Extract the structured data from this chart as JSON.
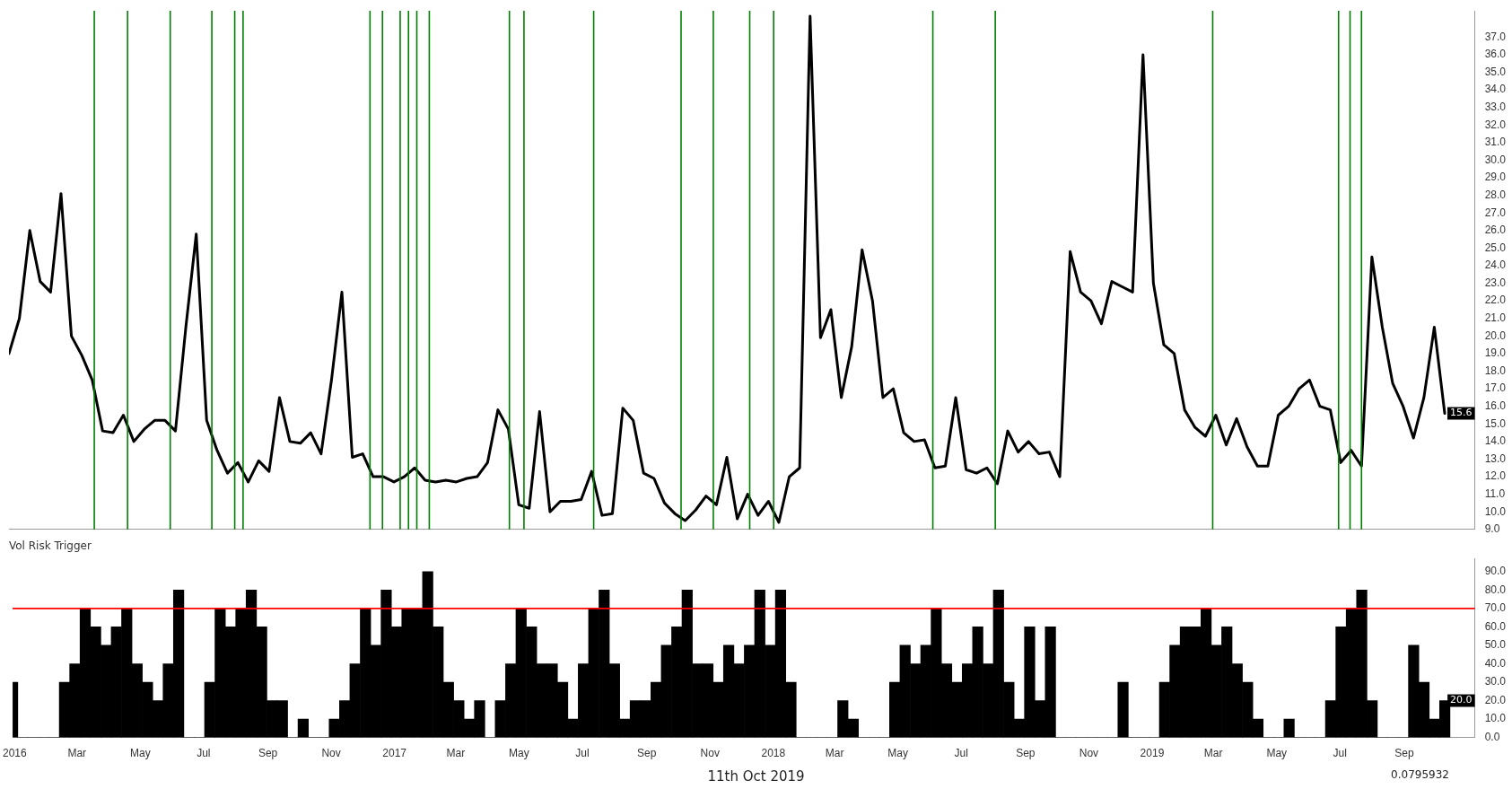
{
  "chart_data": [
    {
      "type": "line",
      "tick_labels": "y",
      "marker": "none",
      "line_style": "solid",
      "xlim": [
        "2015-12-30",
        "2019-11-08"
      ],
      "ylim": [
        9,
        38.5
      ],
      "yticks": [
        {
          "value": 9,
          "label": "9.0"
        },
        {
          "value": 10,
          "label": "10.0"
        },
        {
          "value": 11,
          "label": "11.0"
        },
        {
          "value": 12,
          "label": "12.0"
        },
        {
          "value": 13,
          "label": "13.0"
        },
        {
          "value": 14,
          "label": "14.0"
        },
        {
          "value": 15,
          "label": "15.0"
        },
        {
          "value": 16,
          "label": "16.0"
        },
        {
          "value": 17,
          "label": "17.0"
        },
        {
          "value": 18,
          "label": "18.0"
        },
        {
          "value": 19,
          "label": "19.0"
        },
        {
          "value": 20,
          "label": "20.0"
        },
        {
          "value": 21,
          "label": "21.0"
        },
        {
          "value": 22,
          "label": "22.0"
        },
        {
          "value": 23,
          "label": "23.0"
        },
        {
          "value": 24,
          "label": "24.0"
        },
        {
          "value": 25,
          "label": "25.0"
        },
        {
          "value": 26,
          "label": "26.0"
        },
        {
          "value": 27,
          "label": "27.0"
        },
        {
          "value": 28,
          "label": "28.0"
        },
        {
          "value": 29,
          "label": "29.0"
        },
        {
          "value": 30,
          "label": "30.0"
        },
        {
          "value": 31,
          "label": "31.0"
        },
        {
          "value": 32,
          "label": "32.0"
        },
        {
          "value": 33,
          "label": "33.0"
        },
        {
          "value": 34,
          "label": "34.0"
        },
        {
          "value": 35,
          "label": "35.0"
        },
        {
          "value": 36,
          "label": "36.0"
        },
        {
          "value": 37,
          "label": "37.0"
        }
      ],
      "x": [
        "2015-12-30",
        "2016-01-09",
        "2016-01-19",
        "2016-01-29",
        "2016-02-08",
        "2016-02-18",
        "2016-02-28",
        "2016-03-09",
        "2016-03-19",
        "2016-03-29",
        "2016-04-08",
        "2016-04-18",
        "2016-04-28",
        "2016-05-08",
        "2016-05-18",
        "2016-05-28",
        "2016-06-07",
        "2016-06-17",
        "2016-06-27",
        "2016-07-07",
        "2016-07-17",
        "2016-07-27",
        "2016-08-06",
        "2016-08-16",
        "2016-08-26",
        "2016-09-05",
        "2016-09-15",
        "2016-09-25",
        "2016-10-05",
        "2016-10-15",
        "2016-10-25",
        "2016-11-04",
        "2016-11-14",
        "2016-11-24",
        "2016-12-04",
        "2016-12-14",
        "2016-12-24",
        "2017-01-03",
        "2017-01-13",
        "2017-01-23",
        "2017-02-02",
        "2017-02-12",
        "2017-02-22",
        "2017-03-04",
        "2017-03-14",
        "2017-03-24",
        "2017-04-03",
        "2017-04-13",
        "2017-04-23",
        "2017-05-03",
        "2017-05-13",
        "2017-05-23",
        "2017-06-02",
        "2017-06-12",
        "2017-06-22",
        "2017-07-02",
        "2017-07-12",
        "2017-07-22",
        "2017-08-01",
        "2017-08-11",
        "2017-08-21",
        "2017-08-31",
        "2017-09-10",
        "2017-09-20",
        "2017-09-30",
        "2017-10-10",
        "2017-10-20",
        "2017-10-30",
        "2017-11-09",
        "2017-11-19",
        "2017-11-29",
        "2017-12-09",
        "2017-12-19",
        "2017-12-29",
        "2018-01-08",
        "2018-01-18",
        "2018-01-28",
        "2018-02-07",
        "2018-02-17",
        "2018-02-27",
        "2018-03-09",
        "2018-03-19",
        "2018-03-29",
        "2018-04-08",
        "2018-04-18",
        "2018-04-28",
        "2018-05-08",
        "2018-05-18",
        "2018-05-28",
        "2018-06-07",
        "2018-06-17",
        "2018-06-27",
        "2018-07-07",
        "2018-07-17",
        "2018-07-27",
        "2018-08-06",
        "2018-08-16",
        "2018-08-26",
        "2018-09-05",
        "2018-09-15",
        "2018-09-25",
        "2018-10-05",
        "2018-10-15",
        "2018-10-25",
        "2018-11-04",
        "2018-11-14",
        "2018-11-24",
        "2018-12-04",
        "2018-12-14",
        "2018-12-24",
        "2019-01-03",
        "2019-01-13",
        "2019-01-23",
        "2019-02-02",
        "2019-02-12",
        "2019-02-22",
        "2019-03-04",
        "2019-03-14",
        "2019-03-24",
        "2019-04-03",
        "2019-04-13",
        "2019-04-23",
        "2019-05-03",
        "2019-05-13",
        "2019-05-23",
        "2019-06-02",
        "2019-06-12",
        "2019-06-22",
        "2019-07-02",
        "2019-07-12",
        "2019-07-22",
        "2019-08-01",
        "2019-08-11",
        "2019-08-21",
        "2019-08-31",
        "2019-09-10",
        "2019-09-20",
        "2019-09-30",
        "2019-10-10"
      ],
      "series": [
        {
          "color": "#000000",
          "values": [
            19.0,
            21.0,
            26.0,
            23.1,
            22.5,
            28.1,
            20.0,
            18.9,
            17.5,
            14.6,
            14.5,
            15.5,
            14.0,
            14.7,
            15.2,
            15.2,
            14.6,
            20.5,
            25.8,
            15.2,
            13.5,
            12.2,
            12.8,
            11.7,
            12.9,
            12.3,
            16.5,
            14.0,
            13.9,
            14.5,
            13.3,
            17.5,
            22.5,
            13.1,
            13.3,
            12.0,
            12.0,
            11.7,
            12.0,
            12.5,
            11.8,
            11.7,
            11.8,
            11.7,
            11.9,
            12.0,
            12.8,
            15.8,
            14.7,
            10.4,
            10.2,
            15.7,
            10.0,
            10.6,
            10.6,
            10.7,
            12.3,
            9.8,
            9.9,
            15.9,
            15.2,
            12.2,
            11.9,
            10.5,
            9.9,
            9.5,
            10.1,
            10.9,
            10.4,
            13.1,
            9.6,
            11.0,
            9.8,
            10.6,
            9.4,
            12.0,
            12.5,
            38.2,
            19.9,
            21.5,
            16.5,
            19.4,
            24.9,
            22.0,
            16.5,
            17.0,
            14.5,
            14.0,
            14.1,
            12.5,
            12.6,
            16.5,
            12.4,
            12.2,
            12.5,
            11.6,
            14.6,
            13.4,
            14.0,
            13.3,
            13.4,
            12.0,
            24.8,
            22.5,
            22.0,
            20.7,
            23.1,
            22.8,
            22.5,
            36.0,
            23.0,
            19.5,
            19.0,
            15.8,
            14.8,
            14.3,
            15.5,
            13.8,
            15.3,
            13.7,
            12.6,
            12.6,
            15.5,
            16.0,
            17.0,
            17.5,
            16.0,
            15.8,
            12.8,
            13.5,
            12.6,
            24.5,
            20.5,
            17.3,
            16.0,
            14.2,
            16.5,
            20.5,
            15.6
          ]
        }
      ],
      "ref_lines": [
        {
          "axis": "x",
          "value": "2016-03-21",
          "color": "#008000"
        },
        {
          "axis": "x",
          "value": "2016-04-22",
          "color": "#008000"
        },
        {
          "axis": "x",
          "value": "2016-06-02",
          "color": "#008000"
        },
        {
          "axis": "x",
          "value": "2016-07-12",
          "color": "#008000"
        },
        {
          "axis": "x",
          "value": "2016-08-03",
          "color": "#008000"
        },
        {
          "axis": "x",
          "value": "2016-08-11",
          "color": "#008000"
        },
        {
          "axis": "x",
          "value": "2016-12-11",
          "color": "#008000"
        },
        {
          "axis": "x",
          "value": "2016-12-23",
          "color": "#008000"
        },
        {
          "axis": "x",
          "value": "2017-01-09",
          "color": "#008000"
        },
        {
          "axis": "x",
          "value": "2017-01-17",
          "color": "#008000"
        },
        {
          "axis": "x",
          "value": "2017-01-25",
          "color": "#008000"
        },
        {
          "axis": "x",
          "value": "2017-02-06",
          "color": "#008000"
        },
        {
          "axis": "x",
          "value": "2017-04-24",
          "color": "#008000"
        },
        {
          "axis": "x",
          "value": "2017-05-08",
          "color": "#008000"
        },
        {
          "axis": "x",
          "value": "2017-07-14",
          "color": "#008000"
        },
        {
          "axis": "x",
          "value": "2017-10-06",
          "color": "#008000"
        },
        {
          "axis": "x",
          "value": "2017-11-06",
          "color": "#008000"
        },
        {
          "axis": "x",
          "value": "2017-12-11",
          "color": "#008000"
        },
        {
          "axis": "x",
          "value": "2018-01-03",
          "color": "#008000"
        },
        {
          "axis": "x",
          "value": "2018-06-05",
          "color": "#008000"
        },
        {
          "axis": "x",
          "value": "2018-08-04",
          "color": "#008000"
        },
        {
          "axis": "x",
          "value": "2019-03-01",
          "color": "#008000"
        },
        {
          "axis": "x",
          "value": "2019-06-30",
          "color": "#008000"
        },
        {
          "axis": "x",
          "value": "2019-07-11",
          "color": "#008000"
        },
        {
          "axis": "x",
          "value": "2019-07-22",
          "color": "#008000"
        }
      ],
      "annotations": [
        {
          "text": "15.6",
          "x": "2019-10-10",
          "y": 15.6
        }
      ]
    },
    {
      "type": "bar",
      "title": "Vol Risk Trigger",
      "xlim": [
        "2015-12-30",
        "2019-11-08"
      ],
      "ylim": [
        0,
        97
      ],
      "xticks": [
        {
          "value": "2016-01-01",
          "label": "2016"
        },
        {
          "value": "2016-03-01",
          "label": "Mar"
        },
        {
          "value": "2016-05-01",
          "label": "May"
        },
        {
          "value": "2016-07-01",
          "label": "Jul"
        },
        {
          "value": "2016-09-01",
          "label": "Sep"
        },
        {
          "value": "2016-11-01",
          "label": "Nov"
        },
        {
          "value": "2017-01-01",
          "label": "2017"
        },
        {
          "value": "2017-03-01",
          "label": "Mar"
        },
        {
          "value": "2017-05-01",
          "label": "May"
        },
        {
          "value": "2017-07-01",
          "label": "Jul"
        },
        {
          "value": "2017-09-01",
          "label": "Sep"
        },
        {
          "value": "2017-11-01",
          "label": "Nov"
        },
        {
          "value": "2018-01-01",
          "label": "2018"
        },
        {
          "value": "2018-03-01",
          "label": "Mar"
        },
        {
          "value": "2018-05-01",
          "label": "May"
        },
        {
          "value": "2018-07-01",
          "label": "Jul"
        },
        {
          "value": "2018-09-01",
          "label": "Sep"
        },
        {
          "value": "2018-11-01",
          "label": "Nov"
        },
        {
          "value": "2019-01-01",
          "label": "2019"
        },
        {
          "value": "2019-03-01",
          "label": "Mar"
        },
        {
          "value": "2019-05-01",
          "label": "May"
        },
        {
          "value": "2019-07-01",
          "label": "Jul"
        },
        {
          "value": "2019-09-01",
          "label": "Sep"
        }
      ],
      "yticks": [
        {
          "value": 0,
          "label": "0.0"
        },
        {
          "value": 10,
          "label": "10.0"
        },
        {
          "value": 20,
          "label": "20.0"
        },
        {
          "value": 30,
          "label": "30.0"
        },
        {
          "value": 40,
          "label": "40.0"
        },
        {
          "value": 50,
          "label": "50.0"
        },
        {
          "value": 60,
          "label": "60.0"
        },
        {
          "value": 70,
          "label": "70.0"
        },
        {
          "value": 80,
          "label": "80.0"
        },
        {
          "value": 90,
          "label": "90.0"
        }
      ],
      "x": [
        "2015-12-30",
        "2016-01-09",
        "2016-01-19",
        "2016-01-29",
        "2016-02-08",
        "2016-02-18",
        "2016-02-28",
        "2016-03-09",
        "2016-03-19",
        "2016-03-29",
        "2016-04-08",
        "2016-04-18",
        "2016-04-28",
        "2016-05-08",
        "2016-05-18",
        "2016-05-28",
        "2016-06-07",
        "2016-06-17",
        "2016-06-27",
        "2016-07-07",
        "2016-07-17",
        "2016-07-27",
        "2016-08-06",
        "2016-08-16",
        "2016-08-26",
        "2016-09-05",
        "2016-09-15",
        "2016-09-25",
        "2016-10-05",
        "2016-10-15",
        "2016-10-25",
        "2016-11-04",
        "2016-11-14",
        "2016-11-24",
        "2016-12-04",
        "2016-12-14",
        "2016-12-24",
        "2017-01-03",
        "2017-01-13",
        "2017-01-23",
        "2017-02-02",
        "2017-02-12",
        "2017-02-22",
        "2017-03-04",
        "2017-03-14",
        "2017-03-24",
        "2017-04-03",
        "2017-04-13",
        "2017-04-23",
        "2017-05-03",
        "2017-05-13",
        "2017-05-23",
        "2017-06-02",
        "2017-06-12",
        "2017-06-22",
        "2017-07-02",
        "2017-07-12",
        "2017-07-22",
        "2017-08-01",
        "2017-08-11",
        "2017-08-21",
        "2017-08-31",
        "2017-09-10",
        "2017-09-20",
        "2017-09-30",
        "2017-10-10",
        "2017-10-20",
        "2017-10-30",
        "2017-11-09",
        "2017-11-19",
        "2017-11-29",
        "2017-12-09",
        "2017-12-19",
        "2017-12-29",
        "2018-01-08",
        "2018-01-18",
        "2018-01-28",
        "2018-02-07",
        "2018-02-17",
        "2018-02-27",
        "2018-03-09",
        "2018-03-19",
        "2018-03-29",
        "2018-04-08",
        "2018-04-18",
        "2018-04-28",
        "2018-05-08",
        "2018-05-18",
        "2018-05-28",
        "2018-06-07",
        "2018-06-17",
        "2018-06-27",
        "2018-07-07",
        "2018-07-17",
        "2018-07-27",
        "2018-08-06",
        "2018-08-16",
        "2018-08-26",
        "2018-09-05",
        "2018-09-15",
        "2018-09-25",
        "2018-10-05",
        "2018-10-15",
        "2018-10-25",
        "2018-11-04",
        "2018-11-14",
        "2018-11-24",
        "2018-12-04",
        "2018-12-14",
        "2018-12-24",
        "2019-01-03",
        "2019-01-13",
        "2019-01-23",
        "2019-02-02",
        "2019-02-12",
        "2019-02-22",
        "2019-03-04",
        "2019-03-14",
        "2019-03-24",
        "2019-04-03",
        "2019-04-13",
        "2019-04-23",
        "2019-05-03",
        "2019-05-13",
        "2019-05-23",
        "2019-06-02",
        "2019-06-12",
        "2019-06-22",
        "2019-07-02",
        "2019-07-12",
        "2019-07-22",
        "2019-08-01",
        "2019-08-11",
        "2019-08-21",
        "2019-08-31",
        "2019-09-10",
        "2019-09-20",
        "2019-09-30",
        "2019-10-10"
      ],
      "series": [
        {
          "color": "#000000",
          "values": [
            30,
            0,
            0,
            0,
            0,
            30,
            40,
            70,
            60,
            50,
            60,
            70,
            40,
            30,
            20,
            40,
            80,
            0,
            0,
            30,
            70,
            60,
            70,
            80,
            60,
            20,
            20,
            0,
            10,
            0,
            0,
            10,
            20,
            40,
            70,
            50,
            80,
            60,
            70,
            70,
            90,
            60,
            30,
            20,
            10,
            20,
            0,
            20,
            40,
            70,
            60,
            40,
            40,
            30,
            10,
            40,
            70,
            80,
            40,
            10,
            20,
            20,
            30,
            50,
            60,
            80,
            40,
            40,
            30,
            50,
            40,
            50,
            80,
            50,
            80,
            30,
            0,
            0,
            0,
            0,
            20,
            10,
            0,
            0,
            0,
            30,
            50,
            40,
            50,
            70,
            40,
            30,
            40,
            60,
            40,
            80,
            30,
            10,
            60,
            20,
            60,
            0,
            0,
            0,
            0,
            0,
            0,
            30,
            0,
            0,
            0,
            30,
            50,
            60,
            60,
            70,
            50,
            60,
            40,
            30,
            10,
            0,
            0,
            10,
            0,
            0,
            0,
            20,
            60,
            70,
            80,
            20,
            0,
            0,
            0,
            50,
            30,
            10,
            20
          ]
        }
      ],
      "ref_lines": [
        {
          "axis": "y",
          "value": 70,
          "color": "#ff0000"
        }
      ],
      "annotations": [
        {
          "text": "20.0",
          "x": "2019-10-10",
          "y": 20
        },
        "11th Oct 2019",
        "0.0795932"
      ]
    }
  ]
}
